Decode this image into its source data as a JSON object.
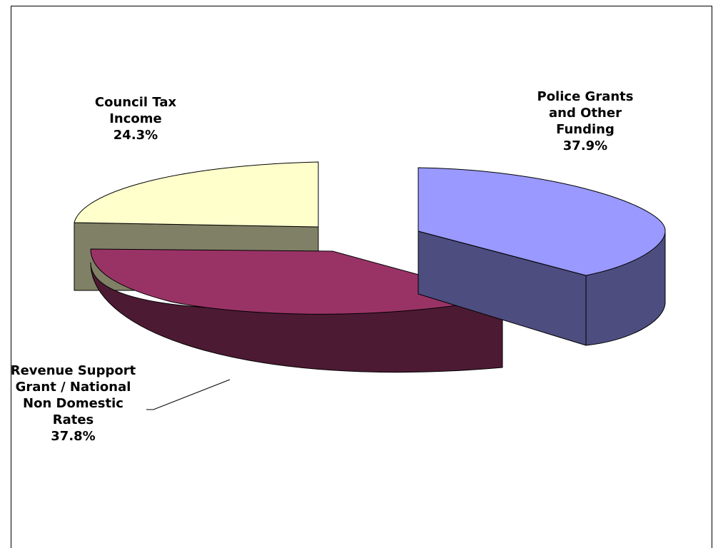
{
  "chart_data": {
    "type": "pie",
    "title": "",
    "slices": [
      {
        "label_lines": [
          "Police Grants",
          "and Other",
          "Funding"
        ],
        "value": 37.9,
        "value_text": "37.9%",
        "top_color": "#9999FF",
        "side_color": "#4D4D80"
      },
      {
        "label_lines": [
          "Revenue Support",
          "Grant / National",
          "Non Domestic",
          "Rates"
        ],
        "value": 37.8,
        "value_text": "37.8%",
        "top_color": "#993366",
        "side_color": "#4D1A33"
      },
      {
        "label_lines": [
          "Council Tax",
          "Income"
        ],
        "value": 24.3,
        "value_text": "24.3%",
        "top_color": "#FFFFCC",
        "side_color": "#808066"
      }
    ],
    "style": "3d-exploded-pie"
  }
}
